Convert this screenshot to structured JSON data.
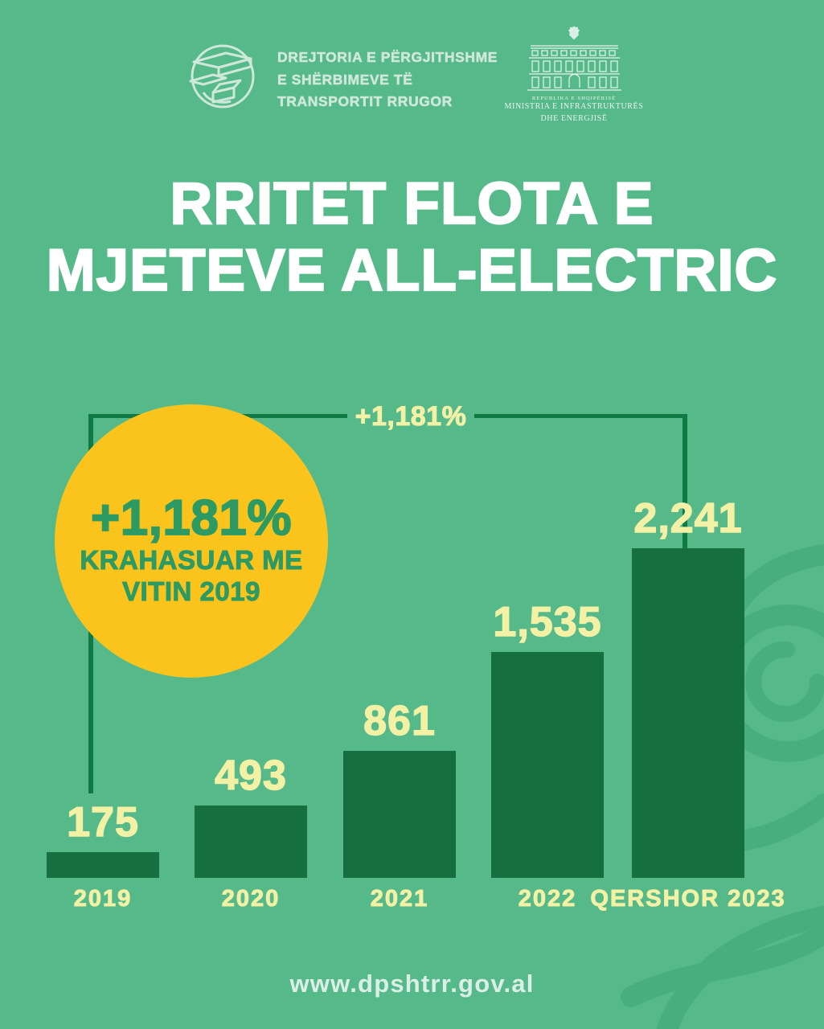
{
  "colors": {
    "bg": "#55b98a",
    "bar": "#156f3e",
    "line": "#0f7a44",
    "pale": "#f2f1a5",
    "white": "#ffffff",
    "mint": "#cfe8da",
    "ministry": "#eaf5ef",
    "badgeBg": "#fbc41d",
    "badgeText": "#2d9a63",
    "wm": "#3aa171",
    "footer": "#dcefe6"
  },
  "header": {
    "dpshtrr": {
      "icon": "globe-road-icon",
      "line1": "DREJTORIA E PËRGJITHSHME",
      "line2": "E SHËRBIMEVE TË",
      "line3": "TRANSPORTIT RRUGOR"
    },
    "ministry": {
      "icon": "eagle-building-emblem-icon",
      "small_line": "REPUBLIKA E SHQIPËRISË",
      "line1": "MINISTRIA E INFRASTRUKTURËS",
      "line2": "DHE ENERGJISË"
    }
  },
  "title": {
    "line1": "RRITET FLOTA E",
    "line2": "MJETEVE ALL-ELECTRIC"
  },
  "badge": {
    "percent": "+1,181%",
    "line1": "KRAHASUAR ME",
    "line2": "VITIN 2019"
  },
  "bracket": {
    "label": "+1,181%"
  },
  "chart_data": {
    "type": "bar",
    "categories": [
      "2019",
      "2020",
      "2021",
      "2022",
      "QERSHOR 2023"
    ],
    "values": [
      175,
      493,
      861,
      1535,
      2241
    ],
    "value_labels": [
      "175",
      "493",
      "861",
      "1,535",
      "2,241"
    ],
    "annotation": "+1,181% KRAHASUAR ME VITIN 2019",
    "ylim": [
      0,
      2241
    ],
    "grid": false,
    "legend": false,
    "bar_color": "#156f3e",
    "value_label_color": "#f2f1a5"
  },
  "footer": {
    "url": "www.dpshtrr.gov.al"
  }
}
